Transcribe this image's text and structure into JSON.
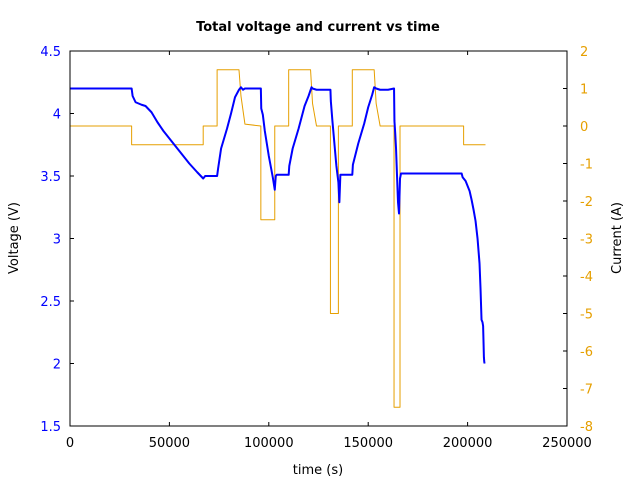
{
  "chart_data": {
    "type": "line",
    "title": "Total voltage and current vs time",
    "xlabel": "time (s)",
    "ylabel": "Voltage (V)",
    "y2label": "Current (A)",
    "xlim": [
      0,
      250000
    ],
    "ylim": [
      1.5,
      4.5
    ],
    "y2lim": [
      -8,
      2
    ],
    "xticks": [
      0,
      50000,
      100000,
      150000,
      200000,
      250000
    ],
    "yticks": [
      1.5,
      2,
      2.5,
      3,
      3.5,
      4,
      4.5
    ],
    "y2ticks": [
      -8,
      -7,
      -6,
      -5,
      -4,
      -3,
      -2,
      -1,
      0,
      1,
      2
    ],
    "y_color": "#0000ff",
    "y2_color": "#e69f00",
    "grid": false,
    "series": [
      {
        "axis": "left",
        "color": "#0000ff",
        "x": [
          0,
          31000,
          31500,
          33000,
          36000,
          38000,
          41000,
          44000,
          47000,
          51000,
          55000,
          60000,
          64000,
          67000,
          68000,
          74000,
          74500,
          76000,
          79000,
          81000,
          83000,
          85000,
          86000,
          86500,
          87000,
          88000,
          96000,
          96200,
          97000,
          98000,
          100000,
          102000,
          103000,
          103500,
          104000,
          110000,
          110300,
          112000,
          115000,
          118000,
          120000,
          121500,
          122000,
          124000,
          128000,
          131000,
          131200,
          132000,
          134000,
          135000,
          135500,
          136000,
          142000,
          142300,
          145000,
          148000,
          150000,
          152000,
          153000,
          154000,
          156000,
          160000,
          163000,
          163200,
          163600,
          164000,
          164500,
          165000,
          165500,
          166000,
          166500,
          167000,
          168000,
          175000,
          185000,
          197000,
          197500,
          199000,
          201000,
          202000,
          203000,
          204000,
          205000,
          206000,
          206500,
          207000,
          207500,
          207800,
          208000,
          208200,
          208400,
          208600
        ],
        "y": [
          4.2,
          4.2,
          4.14,
          4.09,
          4.07,
          4.06,
          4.01,
          3.93,
          3.86,
          3.78,
          3.7,
          3.6,
          3.53,
          3.48,
          3.5,
          3.5,
          3.56,
          3.72,
          3.88,
          4.0,
          4.13,
          4.19,
          4.21,
          4.2,
          4.19,
          4.2,
          4.2,
          4.04,
          3.99,
          3.86,
          3.66,
          3.49,
          3.39,
          3.5,
          3.51,
          3.51,
          3.58,
          3.72,
          3.88,
          4.06,
          4.14,
          4.21,
          4.2,
          4.19,
          4.19,
          4.19,
          4.1,
          3.94,
          3.58,
          3.45,
          3.29,
          3.51,
          3.51,
          3.59,
          3.76,
          3.92,
          4.05,
          4.15,
          4.21,
          4.2,
          4.19,
          4.19,
          4.2,
          3.94,
          3.84,
          3.72,
          3.5,
          3.29,
          3.2,
          3.48,
          3.52,
          3.52,
          3.52,
          3.52,
          3.52,
          3.52,
          3.49,
          3.46,
          3.38,
          3.31,
          3.23,
          3.14,
          3.0,
          2.8,
          2.6,
          2.35,
          2.33,
          2.3,
          2.18,
          2.05,
          2.01,
          2.0
        ]
      },
      {
        "axis": "right",
        "color": "#e69f00",
        "x": [
          0,
          31000,
          31000,
          67000,
          67000,
          74000,
          74000,
          84000,
          85000,
          86000,
          88000,
          96000,
          96000,
          103000,
          103000,
          110000,
          110000,
          120000,
          121000,
          122000,
          124000,
          131000,
          131000,
          135000,
          135000,
          142000,
          142000,
          152000,
          153000,
          154000,
          156000,
          163000,
          163000,
          166000,
          166000,
          198000,
          198000,
          209000
        ],
        "y": [
          0,
          0,
          -0.5,
          -0.5,
          0,
          0,
          1.5,
          1.5,
          1.5,
          0.8,
          0.05,
          0,
          -2.5,
          -2.5,
          0,
          0,
          1.5,
          1.5,
          1.5,
          0.6,
          0,
          0,
          -5,
          -5,
          0,
          0,
          1.5,
          1.5,
          1.5,
          0.6,
          0,
          0,
          -7.5,
          -7.5,
          0,
          0,
          -0.5,
          -0.5
        ]
      }
    ]
  }
}
